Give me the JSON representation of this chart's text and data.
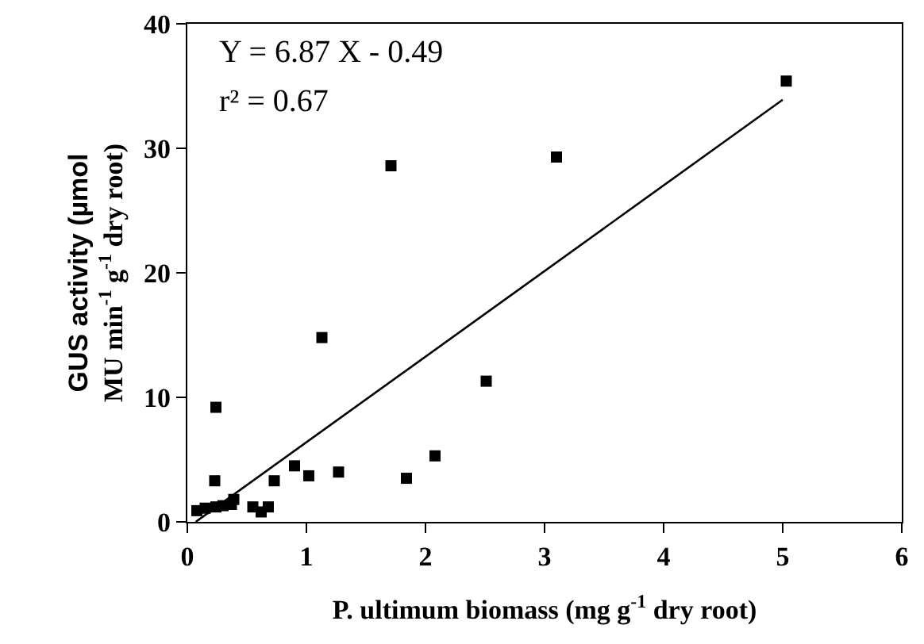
{
  "chart_data": {
    "type": "scatter",
    "xlabel": "P. ultimum biomass (mg g$^{-1}$ dry root)",
    "ylabel": "GUS activity (µmol\nMU min$^{-1}$ g$^{-1}$ dry root)",
    "annotations": [
      "Y = 6.87 X - 0.49",
      "r² = 0.67"
    ],
    "xlim": [
      0,
      6
    ],
    "xticks": [
      0,
      1,
      2,
      3,
      4,
      5,
      6
    ],
    "ylim": [
      0,
      40
    ],
    "yticks": [
      0,
      10,
      20,
      30,
      40
    ],
    "marker": "square",
    "series": [
      {
        "color": "#000000",
        "x": [
          0.08,
          0.15,
          0.24,
          0.3,
          0.37,
          0.39,
          0.23,
          0.24,
          0.55,
          0.62,
          0.68,
          0.73,
          0.9,
          1.02,
          1.13,
          1.27,
          1.71,
          1.84,
          2.08,
          2.51,
          3.1,
          5.03
        ],
        "values": [
          0.9,
          1.1,
          1.2,
          1.3,
          1.4,
          1.8,
          3.3,
          9.2,
          1.2,
          0.8,
          1.2,
          3.3,
          4.5,
          3.7,
          14.8,
          4.0,
          28.6,
          3.5,
          5.3,
          11.3,
          29.3,
          35.4
        ]
      },
      {
        "type": "line",
        "color": "#000000",
        "marker": "none",
        "line_style": "solid",
        "x": [
          0.07,
          5.0
        ],
        "values": [
          0,
          33.9
        ]
      }
    ]
  }
}
